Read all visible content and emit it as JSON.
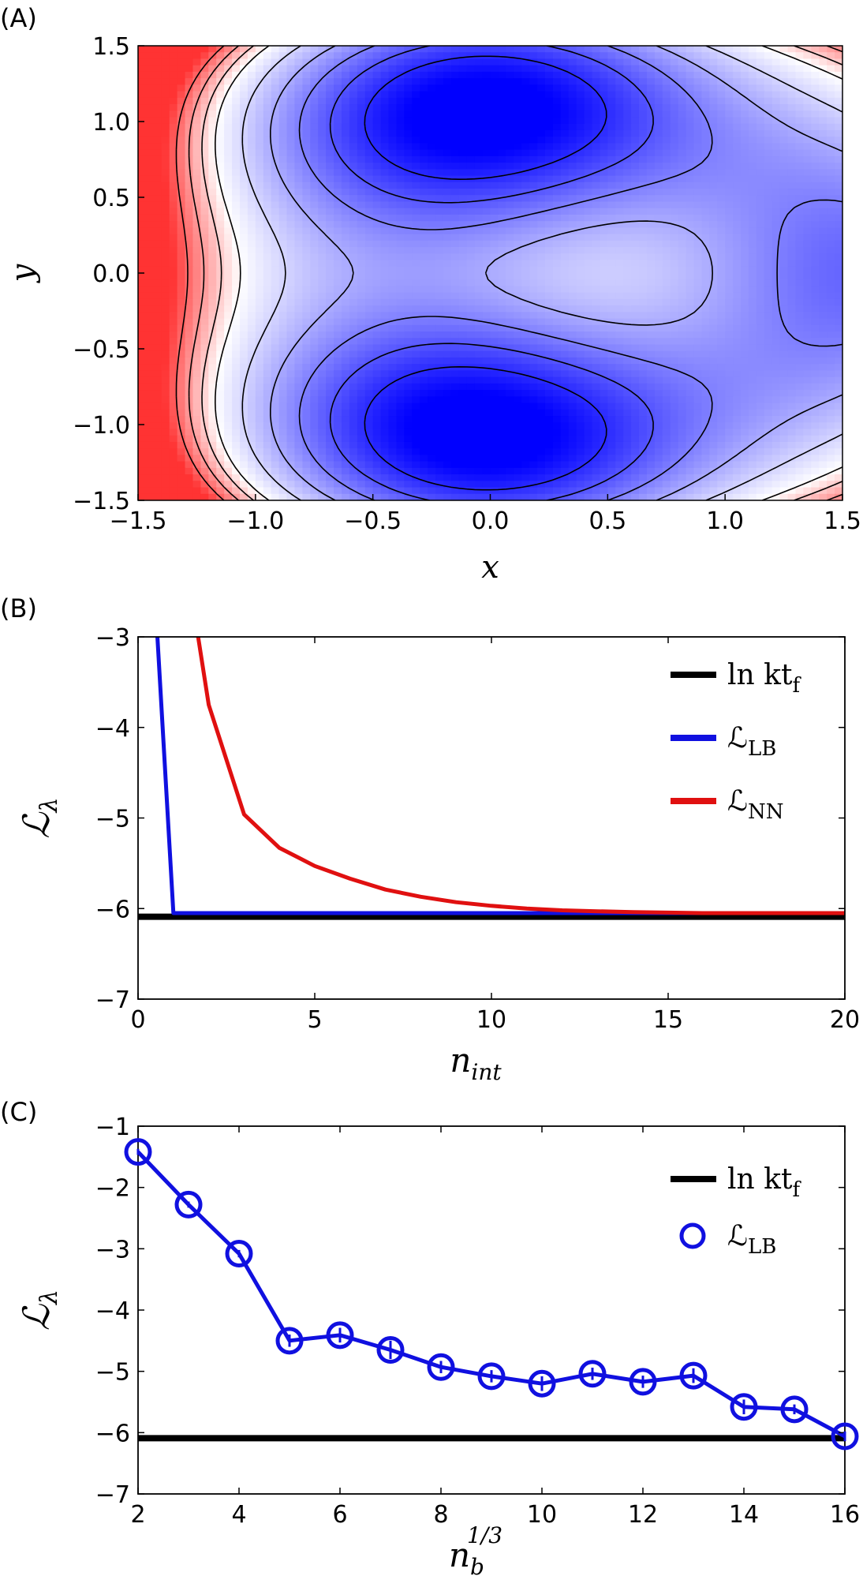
{
  "chart_data": [
    {
      "panel_label": "(A)",
      "type": "heatmap",
      "xlabel": "x",
      "ylabel": "y",
      "xlim": [
        -1.5,
        1.5
      ],
      "ylim": [
        -1.5,
        1.5
      ],
      "xticks": [
        "−1.5",
        "−1.0",
        "−0.5",
        "0.0",
        "0.5",
        "1.0",
        "1.5"
      ],
      "yticks": [
        "1.5",
        "1.0",
        "0.5",
        "0.0",
        "−0.5",
        "−1.0",
        "−1.5"
      ],
      "colormap": "bwr",
      "colors": {
        "low": "#0000ff",
        "mid": "#ffffff",
        "high": "#ff3333"
      },
      "contour_color": "#000000",
      "grid": false
    },
    {
      "panel_label": "(B)",
      "type": "line",
      "xlabel_base": "n",
      "xlabel_sub": "int",
      "ylabel_base": "ℒ",
      "ylabel_sub": "λ",
      "xlim": [
        0,
        20
      ],
      "ylim": [
        -7,
        -3
      ],
      "xticks": [
        "0",
        "5",
        "10",
        "15",
        "20"
      ],
      "yticks": [
        "−3",
        "−4",
        "−5",
        "−6",
        "−7"
      ],
      "grid": false,
      "legend_position": "top-right",
      "legend": [
        {
          "base": "ln kt",
          "sub": "f",
          "color": "#000000"
        },
        {
          "base": "ℒ",
          "sub": "LB",
          "color": "#1010e0"
        },
        {
          "base": "ℒ",
          "sub": "NN",
          "color": "#e01010"
        }
      ],
      "series": [
        {
          "key": "ln_ktf",
          "color": "#000000",
          "x": [
            0,
            20
          ],
          "y": [
            -6.09,
            -6.09
          ]
        },
        {
          "key": "LB",
          "color": "#1010e0",
          "x": [
            0.4,
            1,
            2,
            5,
            10,
            15,
            20
          ],
          "y": [
            -2.0,
            -6.05,
            -6.05,
            -6.05,
            -6.05,
            -6.05,
            -6.05
          ]
        },
        {
          "key": "NN",
          "color": "#e01010",
          "x": [
            1.5,
            2,
            3,
            4,
            5,
            6,
            7,
            8,
            9,
            10,
            11,
            12,
            13,
            14,
            15,
            16,
            17,
            18,
            19,
            20
          ],
          "y": [
            -2.5,
            -3.75,
            -4.96,
            -5.33,
            -5.53,
            -5.67,
            -5.79,
            -5.87,
            -5.93,
            -5.97,
            -6.0,
            -6.02,
            -6.03,
            -6.04,
            -6.045,
            -6.05,
            -6.05,
            -6.05,
            -6.05,
            -6.05
          ]
        }
      ]
    },
    {
      "panel_label": "(C)",
      "type": "line",
      "xlabel_base": "n",
      "xlabel_sub": "b",
      "xlabel_sup": "1/3",
      "ylabel_base": "ℒ",
      "ylabel_sub": "λ",
      "xlim": [
        2,
        16
      ],
      "ylim": [
        -7,
        -1
      ],
      "xticks": [
        "2",
        "4",
        "6",
        "8",
        "10",
        "12",
        "14",
        "16"
      ],
      "yticks": [
        "−1",
        "−2",
        "−3",
        "−4",
        "−5",
        "−6",
        "−7"
      ],
      "grid": false,
      "legend_position": "top-right",
      "legend": [
        {
          "base": "ln kt",
          "sub": "f",
          "color": "#000000",
          "marker": "line"
        },
        {
          "base": "ℒ",
          "sub": "LB",
          "color": "#1010e0",
          "marker": "circle"
        }
      ],
      "reference": {
        "key": "ln_ktf",
        "value": -6.09,
        "color": "#000000"
      },
      "series": [
        {
          "key": "LB",
          "color": "#1010e0",
          "x": [
            2,
            3,
            4,
            5,
            6,
            7,
            8,
            9,
            10,
            11,
            12,
            13,
            14,
            15,
            16
          ],
          "y": [
            -1.42,
            -2.28,
            -3.08,
            -4.5,
            -4.41,
            -4.65,
            -4.93,
            -5.08,
            -5.2,
            -5.04,
            -5.17,
            -5.07,
            -5.58,
            -5.62,
            -6.06
          ],
          "err": [
            0.05,
            0.05,
            0.06,
            0.1,
            0.12,
            0.15,
            0.1,
            0.1,
            0.12,
            0.1,
            0.1,
            0.12,
            0.12,
            0.08,
            0.08
          ]
        }
      ]
    }
  ]
}
